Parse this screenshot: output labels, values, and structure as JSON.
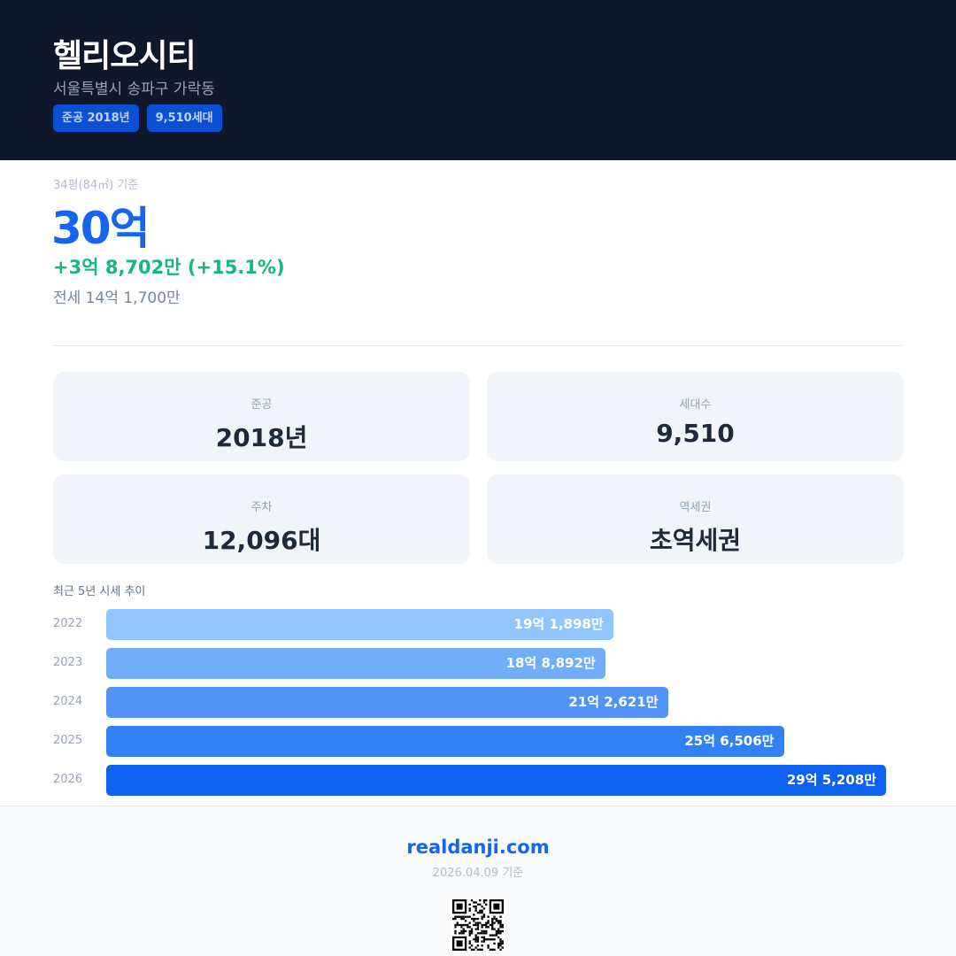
{
  "header": {
    "title": "헬리오시티",
    "address": "서울특별시 송파구 가락동",
    "badges": [
      "준공 2018년",
      "9,510세대"
    ]
  },
  "summary": {
    "basis": "34평(84㎡) 기준",
    "price": "30억",
    "change": "+3억 8,702만 (+15.1%)",
    "jeonse": "전세 14억 1,700만"
  },
  "cards": [
    {
      "label": "준공",
      "value": "2018년"
    },
    {
      "label": "세대수",
      "value": "9,510"
    },
    {
      "label": "주차",
      "value": "12,096대"
    },
    {
      "label": "역세권",
      "value": "초역세권"
    }
  ],
  "chart_data": {
    "type": "bar",
    "orientation": "horizontal",
    "title": "최근 5년 시세 추이",
    "categories": [
      "2022",
      "2023",
      "2024",
      "2025",
      "2026"
    ],
    "values": [
      191898,
      188892,
      212621,
      256506,
      295208
    ],
    "unit": "만원",
    "labels": [
      "19억 1,898만",
      "18억 8,892만",
      "21억 2,621만",
      "25억 6,506만",
      "29억 5,208만"
    ],
    "colors": [
      "#93c5fd",
      "#72adf9",
      "#5294f6",
      "#3180f5",
      "#0f62f0"
    ]
  },
  "footer": {
    "site": "realdanji.com",
    "date": "2026.04.09 기준"
  },
  "colors": {
    "accent": "#1565f0",
    "positive": "#14b87f",
    "header_bg": "#0f172a"
  }
}
